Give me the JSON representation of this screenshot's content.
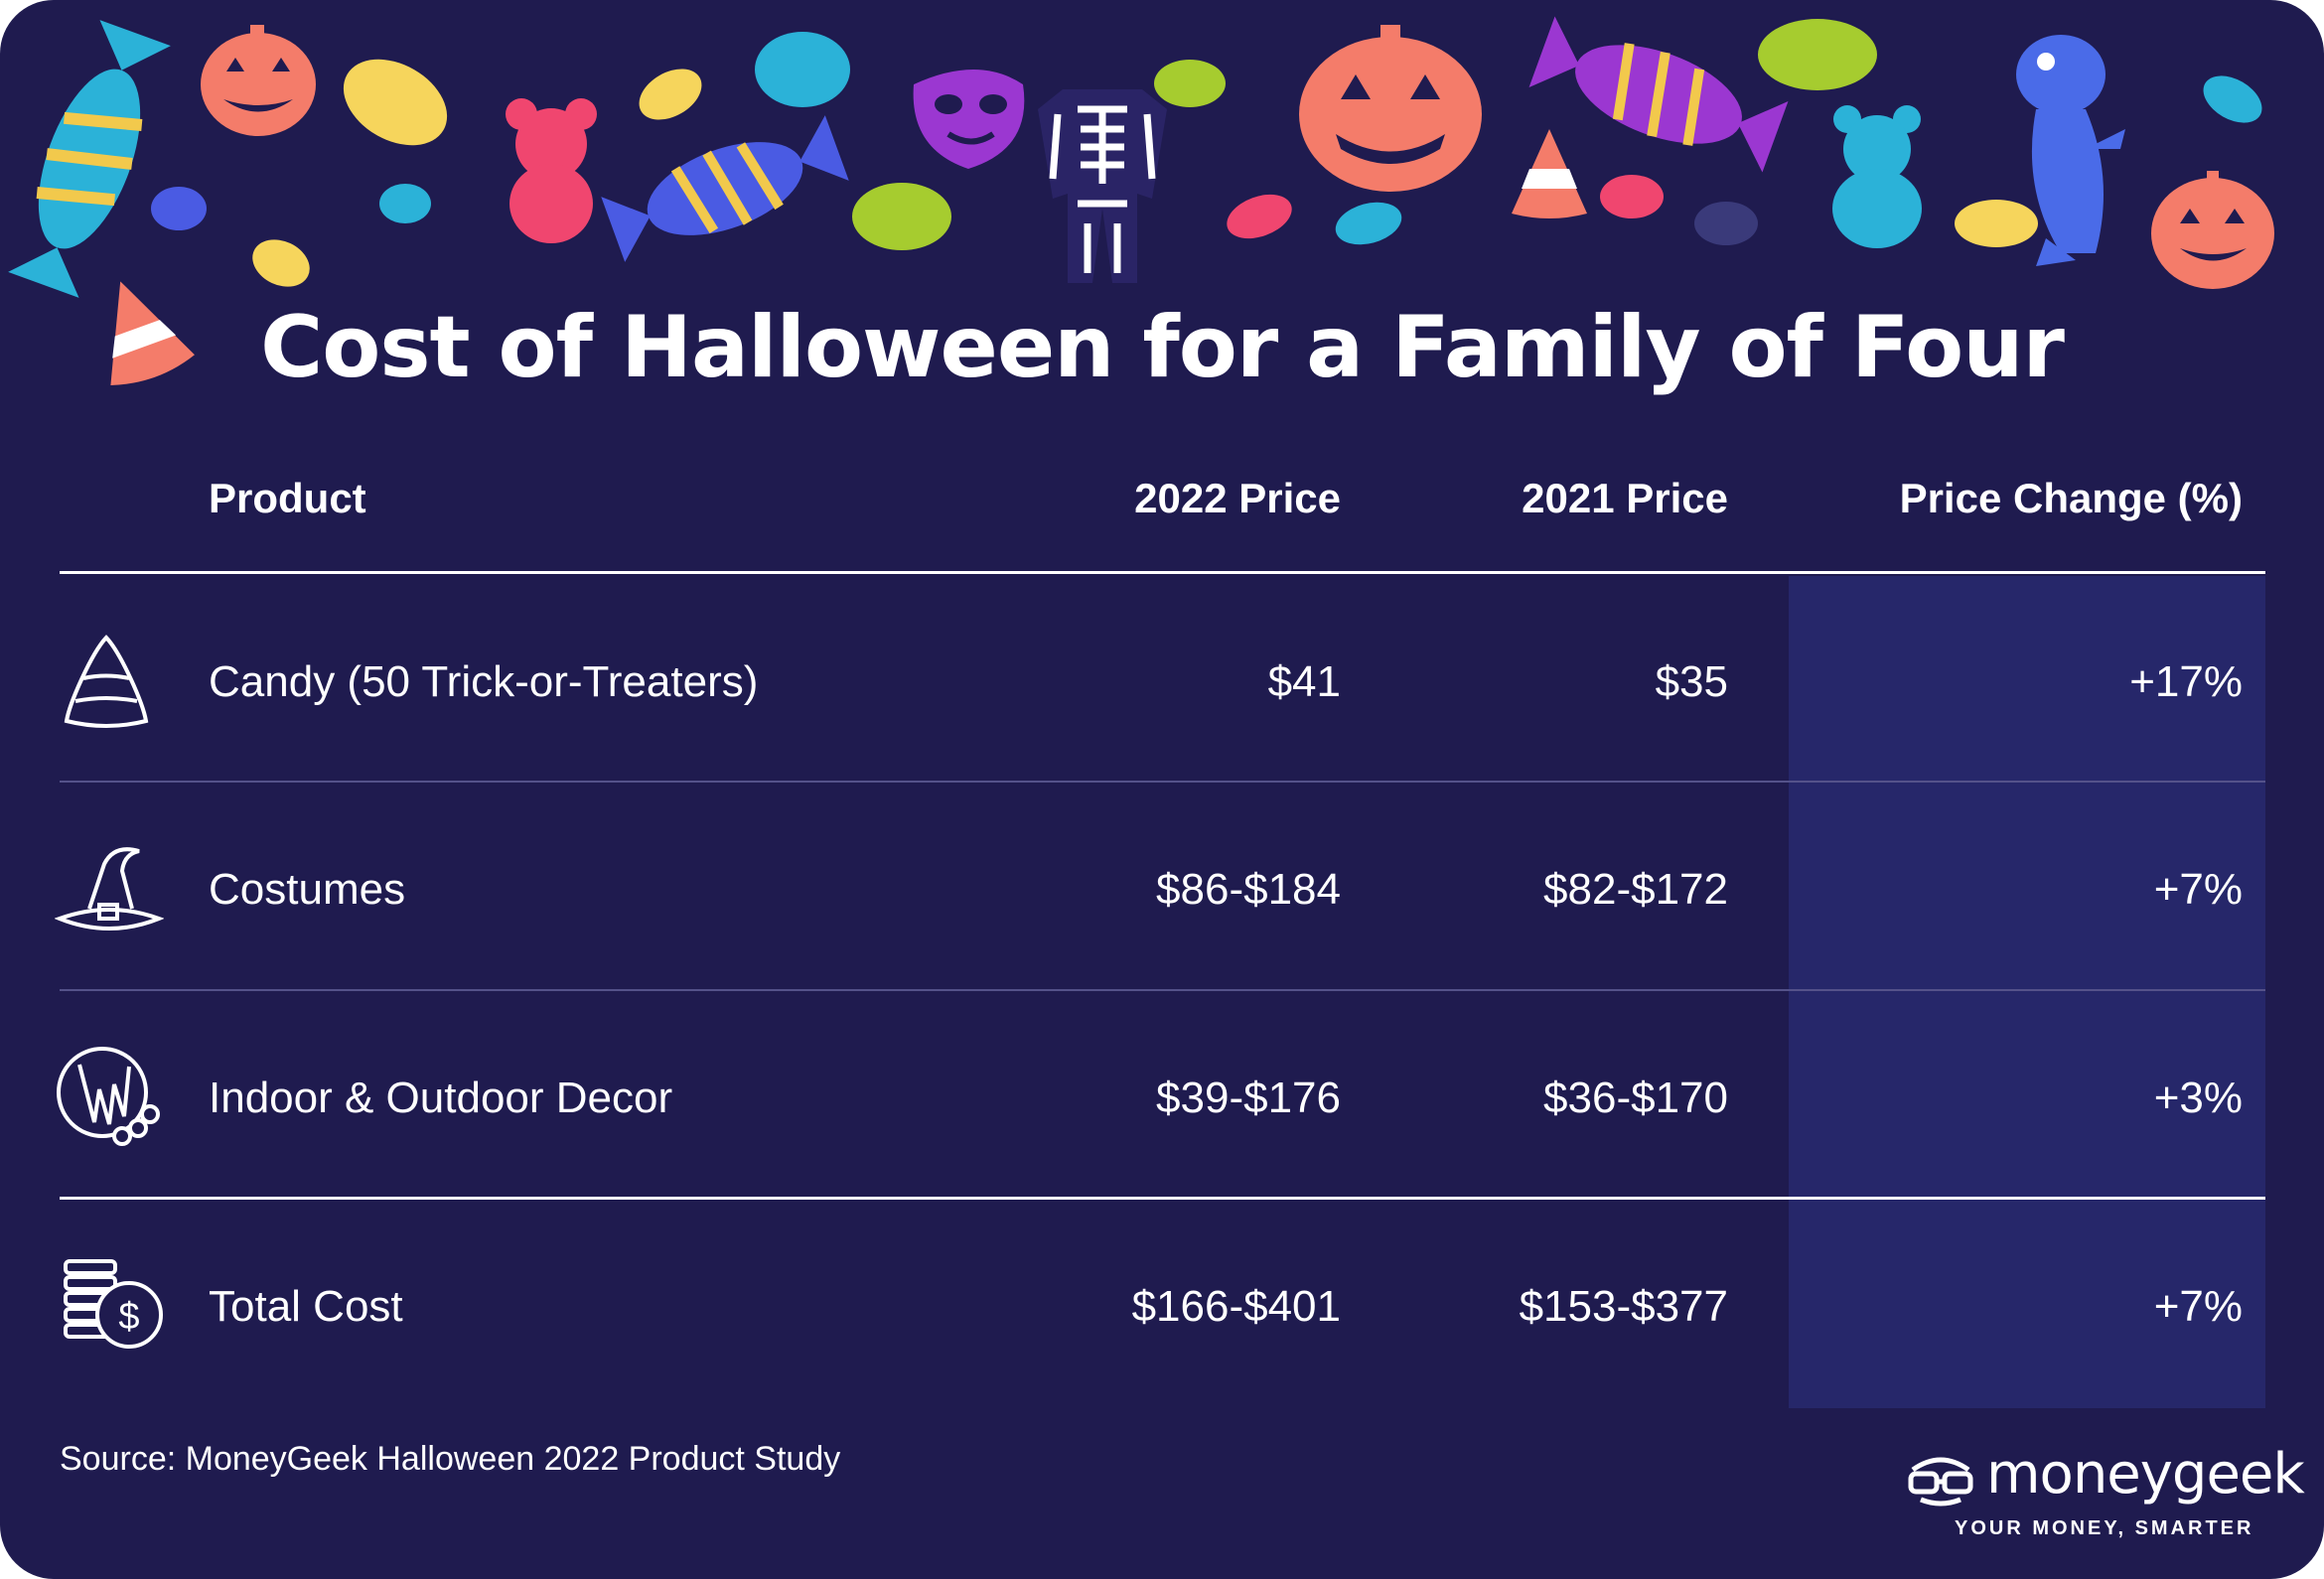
{
  "title": "Cost of Halloween for a Family of Four",
  "headers": {
    "product": "Product",
    "price_2022": "2022 Price",
    "price_2021": "2021 Price",
    "change": "Price Change (%)"
  },
  "rows": [
    {
      "icon": "candy-corn-icon",
      "product": "Candy (50 Trick-or-Treaters)",
      "price_2022": "$41",
      "price_2021": "$35",
      "change": "+17%"
    },
    {
      "icon": "witch-hat-icon",
      "product": "Costumes",
      "price_2022": "$86-$184",
      "price_2021": "$82-$172",
      "change": "+7%"
    },
    {
      "icon": "wreath-decor-icon",
      "product": "Indoor & Outdoor Decor",
      "price_2022": "$39-$176",
      "price_2021": "$36-$170",
      "change": "+3%"
    },
    {
      "icon": "coins-dollar-icon",
      "product": "Total Cost",
      "price_2022": "$166-$401",
      "price_2021": "$153-$377",
      "change": "+7%"
    }
  ],
  "source": "Source: MoneyGeek Halloween 2022 Product Study",
  "brand": {
    "name": "moneygeek",
    "tagline": "YOUR MONEY,  SMARTER"
  },
  "colors": {
    "background": "#1f1b4f",
    "highlight_column": "#26276a",
    "text": "#ffffff",
    "divider": "#54528a"
  }
}
